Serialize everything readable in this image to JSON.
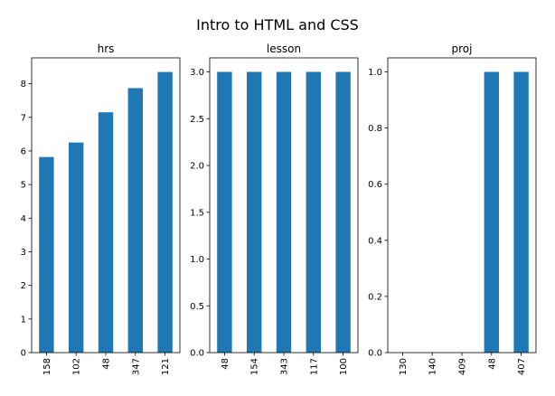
{
  "figure": {
    "suptitle": "Intro to HTML and CSS"
  },
  "colors": {
    "bar": "#1f77b4",
    "axis": "#000000",
    "background": "#ffffff"
  },
  "chart_data": [
    {
      "type": "bar",
      "title": "hrs",
      "xlabel": "",
      "ylabel": "",
      "categories": [
        "158",
        "102",
        "48",
        "347",
        "121"
      ],
      "values": [
        5.82,
        6.25,
        7.15,
        7.87,
        8.35
      ],
      "ylim": [
        0,
        8.77
      ],
      "yticks": [
        0,
        1,
        2,
        3,
        4,
        5,
        6,
        7,
        8
      ],
      "ytick_labels": [
        "0",
        "1",
        "2",
        "3",
        "4",
        "5",
        "6",
        "7",
        "8"
      ],
      "grid": false,
      "legend": "none"
    },
    {
      "type": "bar",
      "title": "lesson",
      "xlabel": "",
      "ylabel": "",
      "categories": [
        "48",
        "154",
        "343",
        "117",
        "100"
      ],
      "values": [
        3,
        3,
        3,
        3,
        3
      ],
      "ylim": [
        0,
        3.15
      ],
      "yticks": [
        0,
        0.5,
        1,
        1.5,
        2,
        2.5,
        3
      ],
      "ytick_labels": [
        "0.0",
        "0.5",
        "1.0",
        "1.5",
        "2.0",
        "2.5",
        "3.0"
      ],
      "grid": false,
      "legend": "none"
    },
    {
      "type": "bar",
      "title": "proj",
      "xlabel": "",
      "ylabel": "",
      "categories": [
        "130",
        "140",
        "409",
        "48",
        "407"
      ],
      "values": [
        0,
        0,
        0,
        1,
        1
      ],
      "ylim": [
        0,
        1.05
      ],
      "yticks": [
        0,
        0.2,
        0.4,
        0.6,
        0.8,
        1
      ],
      "ytick_labels": [
        "0.0",
        "0.2",
        "0.4",
        "0.6",
        "0.8",
        "1.0"
      ],
      "grid": false,
      "legend": "none"
    }
  ]
}
